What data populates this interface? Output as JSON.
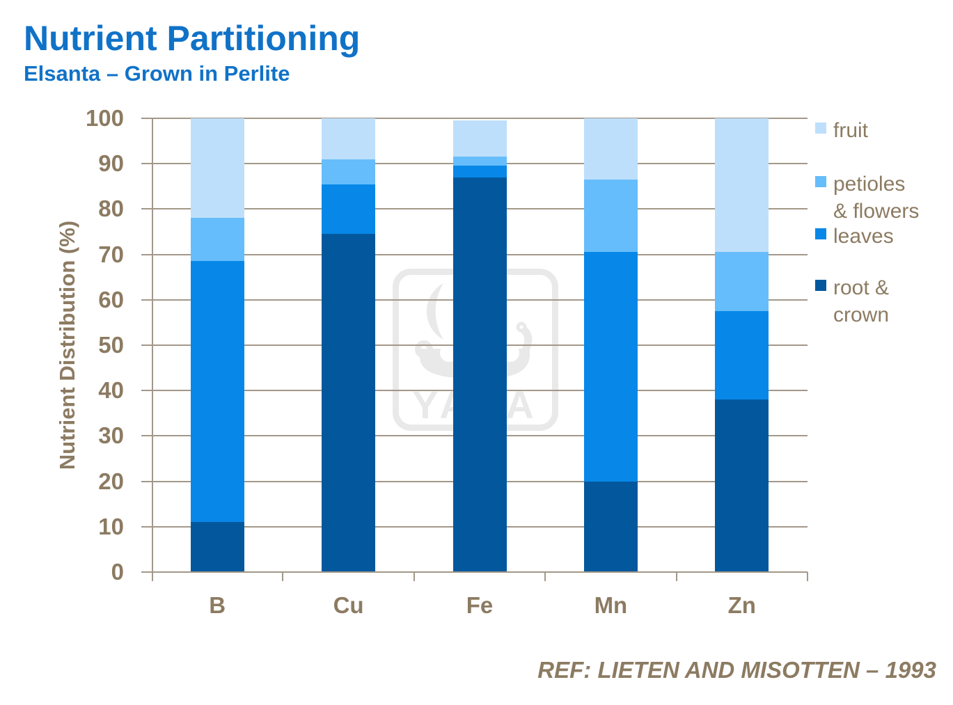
{
  "title": "Nutrient Partitioning",
  "subtitle": "Elsanta – Grown in Perlite",
  "reference": "REF:  LIETEN AND MISOTTEN – 1993",
  "watermark_text": "YARA",
  "colors": {
    "title_blue": "#1072C7",
    "text_brown": "#8C7B62",
    "grid": "#A29889",
    "watermark_gray": "#E9E9E9",
    "fruit": "#BEDFFB",
    "petioles_flowers": "#66BDFB",
    "leaves": "#0788E8",
    "root_crown": "#03589D"
  },
  "chart_data": {
    "type": "bar",
    "stacked": true,
    "title": "Nutrient Partitioning",
    "subtitle": "Elsanta – Grown in Perlite",
    "xlabel": "",
    "ylabel": "Nutrient Distribution (%)",
    "ylim": [
      0,
      100
    ],
    "yticks": [
      0,
      10,
      20,
      30,
      40,
      50,
      60,
      70,
      80,
      90,
      100
    ],
    "grid": true,
    "legend_position": "right",
    "categories": [
      "B",
      "Cu",
      "Fe",
      "Mn",
      "Zn"
    ],
    "series": [
      {
        "name": "root & crown",
        "color": "#03589D",
        "values": [
          11,
          74.5,
          87,
          20,
          38
        ]
      },
      {
        "name": "leaves",
        "color": "#0788E8",
        "values": [
          57.5,
          11,
          2.5,
          50.5,
          19.5
        ]
      },
      {
        "name": "petioles & flowers",
        "color": "#66BDFB",
        "values": [
          9.5,
          5.5,
          2,
          16,
          13
        ]
      },
      {
        "name": "fruit",
        "color": "#BEDFFB",
        "values": [
          22,
          9,
          8,
          13.5,
          29.5
        ]
      }
    ],
    "legend": [
      {
        "label": "fruit",
        "lines": [
          "fruit"
        ],
        "color": "#BEDFFB"
      },
      {
        "label": "petioles & flowers",
        "lines": [
          "petioles",
          "& flowers"
        ],
        "color": "#66BDFB"
      },
      {
        "label": "leaves",
        "lines": [
          "leaves"
        ],
        "color": "#0788E8"
      },
      {
        "label": "root & crown",
        "lines": [
          "root &",
          "crown"
        ],
        "color": "#03589D"
      }
    ]
  }
}
